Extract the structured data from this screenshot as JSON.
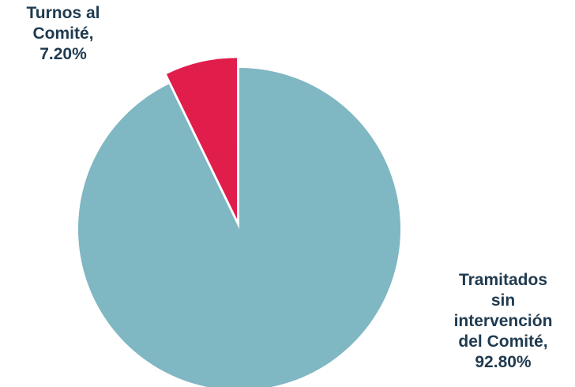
{
  "chart_data": {
    "type": "pie",
    "slices": [
      {
        "label_lines": [
          "Turnos al",
          "Comité,",
          "7.20%"
        ],
        "value": 7.2,
        "color": "#e11d4c",
        "exploded": true
      },
      {
        "label_lines": [
          "Tramitados",
          "sin",
          "intervención",
          "del Comité,",
          "92.80%"
        ],
        "value": 92.8,
        "color": "#7fb7c2",
        "exploded": false
      }
    ],
    "label_color": "#1f3a4f"
  }
}
